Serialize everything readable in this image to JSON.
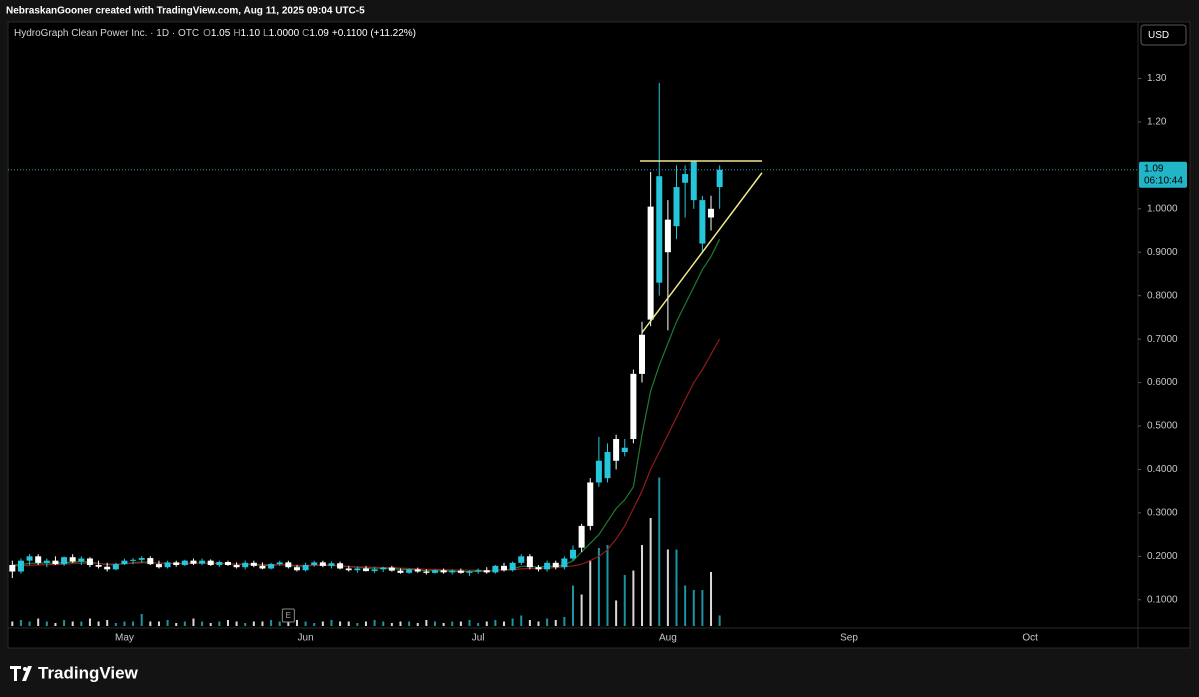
{
  "header": {
    "credit": "NebraskanGooner created with TradingView.com, Aug 11, 2025 09:04 UTC-5"
  },
  "footer": {
    "brand": "TradingView"
  },
  "chart_data": {
    "type": "candlestick",
    "symbol": "HydroGraph Clean Power Inc. · 1D · OTC",
    "ohlc": [
      {
        "key": "O",
        "value": "1.05"
      },
      {
        "key": "H",
        "value": "1.10"
      },
      {
        "key": "L",
        "value": "1.0000"
      },
      {
        "key": "C",
        "value": "1.09"
      }
    ],
    "change": "+0.1100 (+11.22%)",
    "currency": "USD",
    "countdown": "06:10:44",
    "earnings": "E",
    "months": [
      "May",
      "Jun",
      "Jul",
      "Aug",
      "Sep",
      "Oct"
    ],
    "up_color": "#26c6da",
    "down_color": "#ffffff",
    "ylim": [
      0.035,
      1.43
    ],
    "yticks": [
      {
        "value": 1.3,
        "label": "1.30"
      },
      {
        "value": 1.2,
        "label": "1.20"
      },
      {
        "value": 1.0,
        "label": "1.0000"
      },
      {
        "value": 0.9,
        "label": "0.9000"
      },
      {
        "value": 0.8,
        "label": "0.8000"
      },
      {
        "value": 0.7,
        "label": "0.7000"
      },
      {
        "value": 0.6,
        "label": "0.6000"
      },
      {
        "value": 0.5,
        "label": "0.5000"
      },
      {
        "value": 0.4,
        "label": "0.4000"
      },
      {
        "value": 0.3,
        "label": "0.3000"
      },
      {
        "value": 0.2,
        "label": "0.2000"
      },
      {
        "value": 0.1,
        "label": "0.1000"
      }
    ],
    "open": [
      0.18,
      0.165,
      0.19,
      0.2,
      0.185,
      0.19,
      0.182,
      0.198,
      0.188,
      0.195,
      0.18,
      0.176,
      0.17,
      0.182,
      0.19,
      0.192,
      0.196,
      0.182,
      0.175,
      0.186,
      0.18,
      0.19,
      0.183,
      0.19,
      0.18,
      0.187,
      0.18,
      0.175,
      0.185,
      0.178,
      0.172,
      0.182,
      0.186,
      0.175,
      0.168,
      0.18,
      0.186,
      0.178,
      0.184,
      0.172,
      0.168,
      0.172,
      0.166,
      0.17,
      0.174,
      0.167,
      0.162,
      0.17,
      0.165,
      0.162,
      0.168,
      0.163,
      0.167,
      0.162,
      0.165,
      0.168,
      0.163,
      0.178,
      0.168,
      0.185,
      0.2,
      0.175,
      0.17,
      0.185,
      0.175,
      0.195,
      0.27,
      0.37,
      0.37,
      0.38,
      0.47,
      0.44,
      0.62,
      0.71,
      1.005,
      0.83,
      0.975,
      0.96,
      1.06,
      1.02,
      0.92,
      1.0,
      1.05
    ],
    "high": [
      0.19,
      0.195,
      0.205,
      0.205,
      0.195,
      0.2,
      0.2,
      0.205,
      0.2,
      0.198,
      0.19,
      0.185,
      0.185,
      0.195,
      0.196,
      0.2,
      0.2,
      0.19,
      0.19,
      0.19,
      0.192,
      0.195,
      0.195,
      0.193,
      0.19,
      0.19,
      0.186,
      0.19,
      0.19,
      0.186,
      0.185,
      0.19,
      0.19,
      0.18,
      0.185,
      0.19,
      0.19,
      0.188,
      0.188,
      0.178,
      0.176,
      0.178,
      0.175,
      0.176,
      0.178,
      0.172,
      0.172,
      0.174,
      0.17,
      0.17,
      0.172,
      0.17,
      0.172,
      0.168,
      0.172,
      0.175,
      0.18,
      0.185,
      0.188,
      0.205,
      0.205,
      0.18,
      0.19,
      0.19,
      0.2,
      0.225,
      0.275,
      0.38,
      0.475,
      0.46,
      0.48,
      0.47,
      0.63,
      0.74,
      1.085,
      1.29,
      1.02,
      1.1,
      1.1,
      1.11,
      1.03,
      1.03,
      1.1
    ],
    "low": [
      0.15,
      0.16,
      0.18,
      0.18,
      0.175,
      0.18,
      0.178,
      0.185,
      0.18,
      0.175,
      0.172,
      0.165,
      0.168,
      0.18,
      0.182,
      0.185,
      0.18,
      0.172,
      0.172,
      0.176,
      0.178,
      0.18,
      0.18,
      0.178,
      0.175,
      0.178,
      0.172,
      0.17,
      0.175,
      0.17,
      0.17,
      0.178,
      0.172,
      0.165,
      0.165,
      0.176,
      0.175,
      0.172,
      0.17,
      0.165,
      0.162,
      0.165,
      0.162,
      0.164,
      0.165,
      0.16,
      0.16,
      0.162,
      0.158,
      0.16,
      0.16,
      0.158,
      0.16,
      0.155,
      0.16,
      0.16,
      0.16,
      0.165,
      0.165,
      0.18,
      0.17,
      0.165,
      0.165,
      0.17,
      0.17,
      0.19,
      0.21,
      0.26,
      0.36,
      0.37,
      0.4,
      0.43,
      0.46,
      0.6,
      0.73,
      0.8,
      0.72,
      0.93,
      0.98,
      1.0,
      0.9,
      0.95,
      1.0
    ],
    "close": [
      0.165,
      0.19,
      0.2,
      0.185,
      0.19,
      0.182,
      0.198,
      0.188,
      0.195,
      0.18,
      0.176,
      0.17,
      0.182,
      0.19,
      0.192,
      0.196,
      0.182,
      0.175,
      0.186,
      0.18,
      0.19,
      0.183,
      0.19,
      0.18,
      0.187,
      0.18,
      0.175,
      0.185,
      0.178,
      0.172,
      0.182,
      0.186,
      0.175,
      0.168,
      0.18,
      0.186,
      0.178,
      0.184,
      0.172,
      0.168,
      0.172,
      0.166,
      0.17,
      0.174,
      0.167,
      0.162,
      0.17,
      0.165,
      0.162,
      0.168,
      0.163,
      0.167,
      0.162,
      0.165,
      0.168,
      0.163,
      0.178,
      0.168,
      0.185,
      0.2,
      0.175,
      0.17,
      0.185,
      0.175,
      0.195,
      0.215,
      0.22,
      0.27,
      0.42,
      0.44,
      0.42,
      0.45,
      0.47,
      0.62,
      0.745,
      1.075,
      0.9,
      1.05,
      1.08,
      1.11,
      1.02,
      0.98,
      1.09
    ],
    "volume": [
      0.3,
      0.4,
      0.3,
      0.5,
      0.3,
      0.2,
      0.4,
      0.3,
      0.3,
      0.5,
      0.3,
      0.4,
      0.2,
      0.3,
      0.3,
      0.8,
      0.3,
      0.3,
      0.4,
      0.2,
      0.3,
      0.5,
      0.3,
      0.2,
      0.3,
      0.4,
      0.3,
      0.2,
      0.3,
      0.3,
      0.4,
      0.3,
      0.6,
      0.4,
      0.3,
      0.2,
      0.3,
      0.4,
      0.3,
      0.3,
      0.2,
      0.3,
      0.4,
      0.3,
      0.2,
      0.3,
      0.3,
      0.2,
      0.4,
      0.3,
      0.2,
      0.3,
      0.3,
      0.4,
      0.2,
      0.3,
      0.4,
      0.3,
      0.5,
      0.7,
      0.4,
      0.3,
      0.5,
      0.4,
      0.6,
      2.7,
      2.1,
      4.4,
      5.2,
      5.4,
      1.7,
      3.4,
      3.7,
      5.4,
      7.2,
      9.9,
      5.1,
      5.1,
      2.7,
      2.4,
      2.4,
      3.6,
      0.7
    ],
    "volume_lim": [
      0,
      10
    ],
    "series": [
      {
        "color": "#1e7a32",
        "values": [
          0.18,
          0.181,
          0.184,
          0.184,
          0.185,
          0.184,
          0.186,
          0.186,
          0.188,
          0.186,
          0.184,
          0.181,
          0.181,
          0.183,
          0.185,
          0.187,
          0.186,
          0.184,
          0.184,
          0.183,
          0.184,
          0.184,
          0.185,
          0.184,
          0.184,
          0.183,
          0.181,
          0.182,
          0.181,
          0.179,
          0.179,
          0.181,
          0.18,
          0.177,
          0.178,
          0.179,
          0.179,
          0.18,
          0.178,
          0.176,
          0.175,
          0.173,
          0.173,
          0.173,
          0.172,
          0.17,
          0.17,
          0.169,
          0.167,
          0.167,
          0.166,
          0.166,
          0.165,
          0.165,
          0.166,
          0.165,
          0.168,
          0.168,
          0.171,
          0.177,
          0.177,
          0.175,
          0.177,
          0.177,
          0.18,
          0.19,
          0.21,
          0.23,
          0.25,
          0.28,
          0.31,
          0.33,
          0.36,
          0.48,
          0.58,
          0.64,
          0.69,
          0.74,
          0.78,
          0.82,
          0.86,
          0.89,
          0.93
        ]
      },
      {
        "color": "#8c1c1c",
        "values": [
          0.178,
          0.178,
          0.179,
          0.18,
          0.181,
          0.181,
          0.182,
          0.183,
          0.184,
          0.184,
          0.183,
          0.182,
          0.182,
          0.183,
          0.184,
          0.185,
          0.185,
          0.184,
          0.184,
          0.184,
          0.184,
          0.184,
          0.185,
          0.184,
          0.184,
          0.183,
          0.182,
          0.182,
          0.182,
          0.181,
          0.181,
          0.181,
          0.18,
          0.179,
          0.179,
          0.179,
          0.179,
          0.179,
          0.178,
          0.177,
          0.176,
          0.175,
          0.175,
          0.174,
          0.174,
          0.173,
          0.172,
          0.171,
          0.17,
          0.17,
          0.169,
          0.169,
          0.168,
          0.168,
          0.168,
          0.167,
          0.168,
          0.168,
          0.169,
          0.171,
          0.172,
          0.172,
          0.173,
          0.174,
          0.176,
          0.178,
          0.182,
          0.19,
          0.2,
          0.215,
          0.24,
          0.27,
          0.31,
          0.35,
          0.4,
          0.44,
          0.48,
          0.52,
          0.56,
          0.6,
          0.63,
          0.665,
          0.7
        ]
      }
    ],
    "trendlines": [
      {
        "color": "#f0e68c",
        "from": 1.11,
        "to": 1.11
      },
      {
        "color": "#f0e68c",
        "from": 0.715,
        "to": 1.083
      }
    ]
  }
}
